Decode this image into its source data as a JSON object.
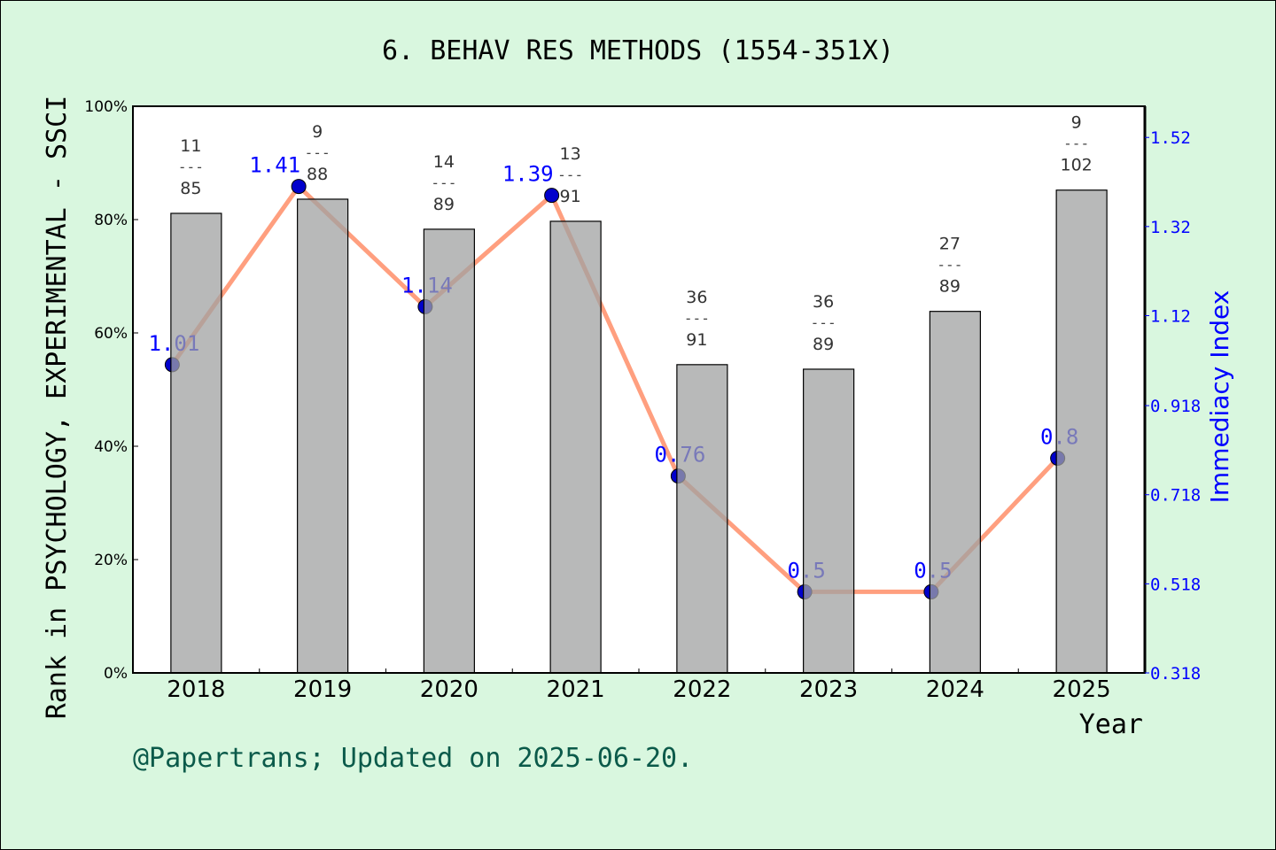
{
  "chart_data": {
    "type": "bar+line",
    "title": "6. BEHAV RES METHODS (1554-351X)",
    "xlabel": "Year",
    "ylabel_left": "Rank in PSYCHOLOGY, EXPERIMENTAL - SSCI",
    "ylabel_right": "Immediacy Index",
    "categories": [
      "2018",
      "2019",
      "2020",
      "2021",
      "2022",
      "2023",
      "2024",
      "2025"
    ],
    "bars": {
      "values_percent": [
        81.1,
        83.6,
        78.3,
        79.7,
        54.4,
        53.6,
        63.8,
        85.2
      ],
      "rank": [
        "11",
        "9",
        "14",
        "13",
        "36",
        "36",
        "27",
        "9"
      ],
      "total": [
        "85",
        "88",
        "89",
        "91",
        "91",
        "89",
        "89",
        "102"
      ],
      "separator": "---",
      "color": "#b8b9ba"
    },
    "line": {
      "values": [
        1.01,
        1.41,
        1.14,
        1.39,
        0.76,
        0.5,
        0.5,
        0.8
      ],
      "labels": [
        "1.01",
        "1.41",
        "1.14",
        "1.39",
        "0.76",
        "0.5",
        "0.5",
        "0.8"
      ],
      "line_color": "#ff9f7f",
      "marker_color": "#0000cc"
    },
    "ylim_left": [
      0,
      100
    ],
    "yticks_left": [
      "0%",
      "20%",
      "40%",
      "60%",
      "80%",
      "100%"
    ],
    "ylim_right": [
      0.318,
      1.59
    ],
    "yticks_right": [
      "0.318",
      "0.518",
      "0.718",
      "0.918",
      "1.12",
      "1.32",
      "1.52"
    ],
    "grid": false,
    "right_axis_color": "#0000ff"
  },
  "footer": "@Papertrans; Updated on 2025-06-20."
}
